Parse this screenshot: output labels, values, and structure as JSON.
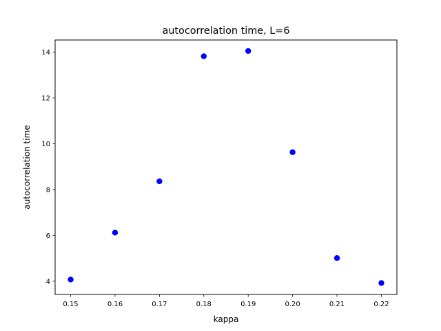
{
  "chart_data": {
    "type": "scatter",
    "title": "autocorrelation time, L=6",
    "xlabel": "kappa",
    "ylabel": "autocorrelation time",
    "xlim": [
      0.1465,
      0.2235
    ],
    "ylim": [
      3.42,
      14.53
    ],
    "x_ticks": [
      "0.15",
      "0.16",
      "0.17",
      "0.18",
      "0.19",
      "0.20",
      "0.21",
      "0.22"
    ],
    "y_ticks": [
      "4",
      "6",
      "8",
      "10",
      "12",
      "14"
    ],
    "grid": false,
    "marker_color": "#0000ff",
    "points": [
      {
        "x": 0.15,
        "y": 4.07
      },
      {
        "x": 0.16,
        "y": 6.12
      },
      {
        "x": 0.17,
        "y": 8.36
      },
      {
        "x": 0.18,
        "y": 13.82
      },
      {
        "x": 0.19,
        "y": 14.05
      },
      {
        "x": 0.2,
        "y": 9.63
      },
      {
        "x": 0.21,
        "y": 5.01
      },
      {
        "x": 0.22,
        "y": 3.92
      }
    ]
  }
}
